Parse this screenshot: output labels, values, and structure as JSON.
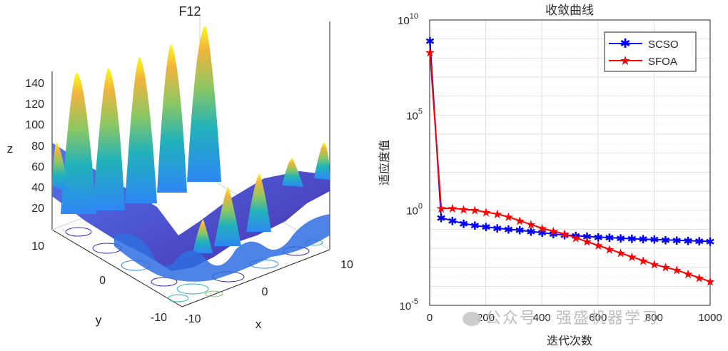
{
  "surface_plot": {
    "title": "F12",
    "xlabel": "x",
    "ylabel": "y",
    "zlabel": "z",
    "x_ticks": [
      "-10",
      "0",
      "10"
    ],
    "y_ticks": [
      "10",
      "0",
      "-10"
    ],
    "z_ticks": [
      "20",
      "40",
      "60",
      "80",
      "100",
      "120",
      "140"
    ],
    "colormap": [
      "#3e26a8",
      "#2e86f5",
      "#21b2ba",
      "#8bc764",
      "#f1b43c",
      "#f9fb15"
    ]
  },
  "chart_data": {
    "type": "line",
    "title": "收敛曲线",
    "xlabel": "迭代次数",
    "ylabel": "适应度值",
    "yscale": "log",
    "xlim": [
      0,
      1000
    ],
    "ylim_log10": [
      -5,
      10
    ],
    "x_ticks": [
      "0",
      "200",
      "400",
      "600",
      "800",
      "1000"
    ],
    "y_ticks": [
      {
        "base": "10",
        "exp": "-5"
      },
      {
        "base": "10",
        "exp": "0"
      },
      {
        "base": "10",
        "exp": "5"
      },
      {
        "base": "10",
        "exp": "10"
      }
    ],
    "legend_position": "top-right",
    "series": [
      {
        "name": "SCSO",
        "color": "#0000ff",
        "marker": "asterisk",
        "x": [
          1,
          41,
          81,
          121,
          161,
          201,
          241,
          281,
          321,
          361,
          401,
          441,
          481,
          521,
          561,
          601,
          641,
          681,
          721,
          761,
          801,
          841,
          881,
          921,
          961,
          1000
        ],
        "log10_y": [
          8.9,
          -0.4,
          -0.55,
          -0.7,
          -0.8,
          -0.88,
          -0.95,
          -1.0,
          -1.05,
          -1.12,
          -1.18,
          -1.25,
          -1.3,
          -1.34,
          -1.38,
          -1.41,
          -1.44,
          -1.47,
          -1.5,
          -1.52,
          -1.54,
          -1.56,
          -1.58,
          -1.6,
          -1.62,
          -1.64
        ]
      },
      {
        "name": "SFOA",
        "color": "#ff0000",
        "marker": "pentagram",
        "x": [
          1,
          41,
          81,
          121,
          161,
          201,
          241,
          281,
          321,
          361,
          401,
          441,
          481,
          521,
          561,
          601,
          641,
          681,
          721,
          761,
          801,
          841,
          881,
          921,
          961,
          1000
        ],
        "log10_y": [
          8.3,
          0.1,
          0.1,
          0.05,
          0.0,
          -0.1,
          -0.2,
          -0.35,
          -0.55,
          -0.75,
          -0.95,
          -1.1,
          -1.25,
          -1.45,
          -1.65,
          -1.85,
          -2.05,
          -2.25,
          -2.45,
          -2.65,
          -2.85,
          -3.0,
          -3.15,
          -3.35,
          -3.55,
          -3.75
        ]
      }
    ]
  },
  "watermark": {
    "text": "公众号 · 强盛机器学习"
  }
}
